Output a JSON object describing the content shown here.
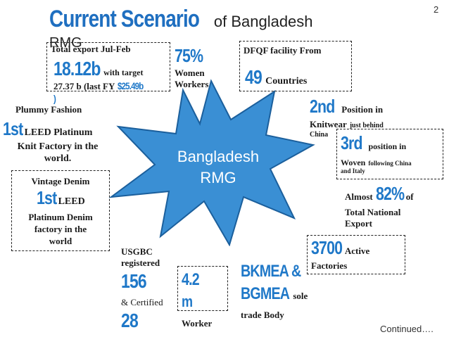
{
  "slide": {
    "page_number": "2",
    "title_main": "Current Scenario",
    "title_rest": "of Bangladesh",
    "title_rmg": "RMG",
    "star_line1": "Bangladesh",
    "star_line2": "RMG",
    "continued": "Continued….",
    "colors": {
      "accent": "#1f78c8",
      "star_fill": "#3a8fd4",
      "star_stroke": "#1b5f9c"
    }
  },
  "export": {
    "label": "Total export Jul-Feb",
    "value": "18.12b",
    "with_target": "with target",
    "target_line": "27.37 b (last FY",
    "last_fy_value": "$25.49b",
    "close_paren": ")"
  },
  "women": {
    "value": "75%",
    "line1": "Women",
    "line2": "Workers"
  },
  "dfqf": {
    "label": "DFQF facility From",
    "value": "49",
    "unit": "Countries"
  },
  "plummy": {
    "label": "Plummy  Fashion",
    "rank": "1st",
    "text1": "LEED Platinum",
    "text2": "Knit Factory in the",
    "text3": "world."
  },
  "knit": {
    "rank": "2nd",
    "text1": "Position in",
    "text2": "Knitwear",
    "text3": "just behind",
    "text4": "China"
  },
  "woven": {
    "rank": "3rd",
    "text1": "position in",
    "text2": "Woven",
    "text3": "following China",
    "text4": "and Italy"
  },
  "vintage": {
    "label": "Vintage Denim",
    "rank": "1st",
    "text1": "LEED",
    "text2": "Platinum Denim",
    "text3": "factory in the",
    "text4": "world"
  },
  "export_share": {
    "prefix": "Almost",
    "value": "82%",
    "suffix": "of",
    "line2": "Total National",
    "line3": "Export"
  },
  "factories": {
    "value": "3700",
    "label": "Active",
    "line2": "Factories"
  },
  "usgbc": {
    "line1": "USGBC",
    "line2": "registered",
    "value1": "156",
    "certified": "& Certified",
    "value2": "28"
  },
  "workers": {
    "value_a": "4.2",
    "value_b": "m",
    "label": "Worker"
  },
  "trade": {
    "line1": "BKMEA &",
    "line2": "BGMEA",
    "sole": "sole",
    "line3": "trade Body"
  }
}
